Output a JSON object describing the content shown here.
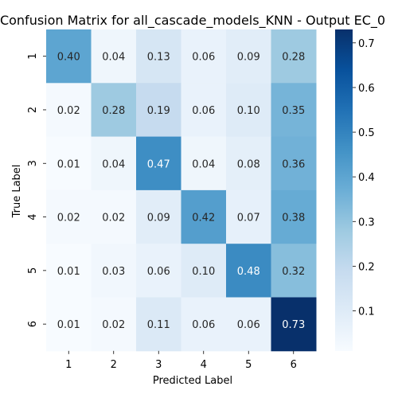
{
  "chart_data": {
    "type": "heatmap",
    "title": "Confusion Matrix for all_cascade_models_KNN - Output EC_0",
    "xlabel": "Predicted Label",
    "ylabel": "True Label",
    "x_categories": [
      "1",
      "2",
      "3",
      "4",
      "5",
      "6"
    ],
    "y_categories": [
      "1",
      "2",
      "3",
      "4",
      "5",
      "6"
    ],
    "values": [
      [
        0.4,
        0.04,
        0.13,
        0.06,
        0.09,
        0.28
      ],
      [
        0.02,
        0.28,
        0.19,
        0.06,
        0.1,
        0.35
      ],
      [
        0.01,
        0.04,
        0.47,
        0.04,
        0.08,
        0.36
      ],
      [
        0.02,
        0.02,
        0.09,
        0.42,
        0.07,
        0.38
      ],
      [
        0.01,
        0.03,
        0.06,
        0.1,
        0.48,
        0.32
      ],
      [
        0.01,
        0.02,
        0.11,
        0.06,
        0.06,
        0.73
      ]
    ],
    "value_format": "0.00",
    "colormap": "Blues",
    "colorbar": {
      "range": [
        0.01,
        0.73
      ],
      "ticks": [
        "0.1",
        "0.2",
        "0.3",
        "0.4",
        "0.5",
        "0.6",
        "0.7"
      ]
    },
    "grid": false
  }
}
